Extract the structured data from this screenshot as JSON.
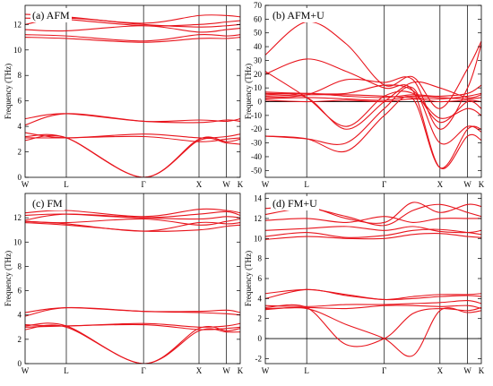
{
  "colors": {
    "band": "#e8141c",
    "axis": "#000000"
  },
  "chart_data": [
    {
      "type": "line",
      "panel_label": "(a) AFM",
      "ylabel": "Frequency (THz)",
      "ylim": [
        0,
        13.5
      ],
      "yticks": [
        0,
        2,
        4,
        6,
        8,
        10,
        12
      ],
      "x_ticks": [
        "W",
        "L",
        "Γ",
        "X",
        "W",
        "K"
      ],
      "x_tick_positions": [
        0,
        0.87,
        2.5,
        3.67,
        4.25,
        4.54
      ],
      "zero_line": false,
      "series": [
        {
          "x": [
            0,
            0.87,
            2.5,
            3.67,
            4.25,
            4.54
          ],
          "values": [
            12.8,
            12.6,
            12.1,
            12.7,
            12.7,
            12.6
          ]
        },
        {
          "x": [
            0,
            0.87,
            2.5,
            3.67,
            4.25,
            4.54
          ],
          "values": [
            12.5,
            12.4,
            11.9,
            12.0,
            12.2,
            12.3
          ]
        },
        {
          "x": [
            0,
            0.87,
            2.5,
            3.67,
            4.25,
            4.54
          ],
          "values": [
            12.0,
            12.5,
            12.0,
            11.8,
            11.9,
            12.0
          ]
        },
        {
          "x": [
            0,
            0.87,
            2.5,
            3.67,
            4.25,
            4.54
          ],
          "values": [
            11.6,
            11.5,
            11.9,
            11.4,
            11.6,
            11.7
          ]
        },
        {
          "x": [
            0,
            0.87,
            2.5,
            3.67,
            4.25,
            4.54
          ],
          "values": [
            11.2,
            11.1,
            10.7,
            11.2,
            11.1,
            11.2
          ]
        },
        {
          "x": [
            0,
            0.87,
            2.5,
            3.67,
            4.25,
            4.54
          ],
          "values": [
            11.0,
            10.9,
            10.6,
            10.9,
            10.9,
            11.0
          ]
        },
        {
          "x": [
            0,
            0.87,
            2.5,
            3.67,
            4.25,
            4.54
          ],
          "values": [
            4.6,
            5.0,
            4.4,
            4.5,
            4.4,
            4.6
          ]
        },
        {
          "x": [
            0,
            0.87,
            2.5,
            3.67,
            4.25,
            4.54
          ],
          "values": [
            4.1,
            5.0,
            4.4,
            4.3,
            4.5,
            4.4
          ]
        },
        {
          "x": [
            0,
            0.87,
            2.5,
            3.67,
            4.25,
            4.54
          ],
          "values": [
            3.5,
            3.1,
            3.4,
            3.1,
            3.2,
            3.4
          ]
        },
        {
          "x": [
            0,
            0.87,
            2.5,
            3.67,
            4.25,
            4.54
          ],
          "values": [
            3.1,
            3.1,
            3.2,
            2.8,
            3.0,
            3.1
          ]
        },
        {
          "x": [
            0,
            0.87,
            2.5,
            3.67,
            4.25,
            4.54
          ],
          "values": [
            3.2,
            3.1,
            0.0,
            3.0,
            2.8,
            3.0
          ]
        },
        {
          "x": [
            0,
            0.87,
            2.5,
            3.67,
            4.25,
            4.54
          ],
          "values": [
            2.9,
            3.1,
            0.0,
            2.9,
            2.7,
            2.6
          ]
        }
      ]
    },
    {
      "type": "line",
      "panel_label": "(b) AFM+U",
      "ylabel": "Frequency (THz)",
      "ylim": [
        -55,
        70
      ],
      "yticks": [
        -50,
        -40,
        -30,
        -20,
        -10,
        0,
        10,
        20,
        30,
        40,
        50,
        60,
        70
      ],
      "x_ticks": [
        "W",
        "L",
        "Γ",
        "X",
        "W",
        "K"
      ],
      "x_tick_positions": [
        0,
        0.87,
        2.5,
        3.67,
        4.25,
        4.54
      ],
      "zero_line": true,
      "series": [
        {
          "x": [
            0,
            0.87,
            1.7,
            2.5,
            3.1,
            3.67,
            4.25,
            4.54
          ],
          "values": [
            34,
            58,
            42,
            12,
            18,
            -5,
            24,
            44
          ]
        },
        {
          "x": [
            0,
            0.87,
            1.7,
            2.5,
            3.1,
            3.67,
            4.25,
            4.54
          ],
          "values": [
            20,
            31,
            22,
            10,
            8,
            -48,
            -25,
            -28
          ]
        },
        {
          "x": [
            0,
            0.87,
            1.7,
            2.5,
            3.1,
            3.67,
            4.25,
            4.54
          ],
          "values": [
            -25,
            -27,
            -36,
            -10,
            2,
            -48,
            -20,
            -20
          ]
        },
        {
          "x": [
            0,
            0.87,
            1.7,
            2.5,
            3.1,
            3.67,
            4.25,
            4.54
          ],
          "values": [
            -25,
            -27,
            -30,
            -5,
            10,
            -30,
            -18,
            -22
          ]
        },
        {
          "x": [
            0,
            0.87,
            1.7,
            2.5,
            3.1,
            3.67,
            4.25,
            4.54
          ],
          "values": [
            22,
            3,
            -18,
            4,
            6,
            -12,
            -5,
            -10
          ]
        },
        {
          "x": [
            0,
            0.87,
            1.7,
            2.5,
            3.1,
            3.67,
            4.25,
            4.54
          ],
          "values": [
            6,
            3,
            -20,
            0,
            14,
            10,
            3,
            5
          ]
        },
        {
          "x": [
            0,
            0.87,
            1.7,
            2.5,
            3.1,
            3.67,
            4.25,
            4.54
          ],
          "values": [
            5,
            6,
            4,
            3,
            5,
            4,
            6,
            12
          ]
        },
        {
          "x": [
            0,
            0.87,
            1.7,
            2.5,
            3.1,
            3.67,
            4.25,
            4.54
          ],
          "values": [
            4,
            5,
            5,
            4,
            3,
            2,
            4,
            6
          ]
        },
        {
          "x": [
            0,
            0.87,
            1.7,
            2.5,
            3.1,
            3.67,
            4.25,
            4.54
          ],
          "values": [
            2,
            3,
            2,
            1,
            4,
            3,
            2,
            3
          ]
        },
        {
          "x": [
            0,
            0.87,
            1.7,
            2.5,
            3.1,
            3.67,
            4.25,
            4.54
          ],
          "values": [
            1,
            0,
            1,
            0,
            2,
            0,
            1,
            0
          ]
        },
        {
          "x": [
            0,
            0.87,
            1.7,
            2.5,
            3.1,
            3.67,
            4.25,
            4.54
          ],
          "values": [
            3,
            5,
            16,
            14,
            16,
            -20,
            10,
            42
          ]
        },
        {
          "x": [
            0,
            0.87,
            1.7,
            2.5,
            3.1,
            3.67,
            4.25,
            4.54
          ],
          "values": [
            7,
            6,
            6,
            12,
            8,
            -15,
            0,
            -5
          ]
        }
      ]
    },
    {
      "type": "line",
      "panel_label": "(c) FM",
      "ylabel": "Frequency (THz)",
      "ylim": [
        0,
        14
      ],
      "yticks": [
        0,
        2,
        4,
        6,
        8,
        10,
        12
      ],
      "x_ticks": [
        "W",
        "L",
        "Γ",
        "X",
        "W",
        "K"
      ],
      "x_tick_positions": [
        0,
        0.87,
        2.5,
        3.67,
        4.25,
        4.54
      ],
      "zero_line": false,
      "series": [
        {
          "x": [
            0,
            0.87,
            2.5,
            3.67,
            4.25,
            4.54
          ],
          "values": [
            12.4,
            12.6,
            12.1,
            12.7,
            12.6,
            12.4
          ]
        },
        {
          "x": [
            0,
            0.87,
            2.5,
            3.67,
            4.25,
            4.54
          ],
          "values": [
            12.2,
            12.3,
            12.0,
            12.3,
            12.5,
            12.2
          ]
        },
        {
          "x": [
            0,
            0.87,
            2.5,
            3.67,
            4.25,
            4.54
          ],
          "values": [
            11.8,
            12.3,
            12.0,
            11.9,
            12.1,
            12.0
          ]
        },
        {
          "x": [
            0,
            0.87,
            2.5,
            3.67,
            4.25,
            4.54
          ],
          "values": [
            11.7,
            11.6,
            11.9,
            11.4,
            11.7,
            11.9
          ]
        },
        {
          "x": [
            0,
            0.87,
            2.5,
            3.67,
            4.25,
            4.54
          ],
          "values": [
            11.7,
            11.5,
            10.9,
            11.6,
            11.5,
            11.6
          ]
        },
        {
          "x": [
            0,
            0.87,
            2.5,
            3.67,
            4.25,
            4.54
          ],
          "values": [
            11.6,
            11.4,
            10.9,
            11.0,
            11.3,
            11.4
          ]
        },
        {
          "x": [
            0,
            0.87,
            2.5,
            3.67,
            4.25,
            4.54
          ],
          "values": [
            4.2,
            4.6,
            4.3,
            4.3,
            4.4,
            4.2
          ]
        },
        {
          "x": [
            0,
            0.87,
            2.5,
            3.67,
            4.25,
            4.54
          ],
          "values": [
            3.9,
            4.6,
            4.3,
            4.2,
            4.1,
            4.0
          ]
        },
        {
          "x": [
            0,
            0.87,
            2.5,
            3.67,
            4.25,
            4.54
          ],
          "values": [
            3.2,
            3.1,
            3.3,
            3.0,
            3.1,
            3.3
          ]
        },
        {
          "x": [
            0,
            0.87,
            2.5,
            3.67,
            4.25,
            4.54
          ],
          "values": [
            3.0,
            3.1,
            3.2,
            2.8,
            2.9,
            3.0
          ]
        },
        {
          "x": [
            0,
            0.87,
            2.5,
            3.67,
            4.25,
            4.54
          ],
          "values": [
            3.1,
            3.1,
            0.0,
            2.9,
            2.7,
            2.9
          ]
        },
        {
          "x": [
            0,
            0.87,
            2.5,
            3.67,
            4.25,
            4.54
          ],
          "values": [
            2.8,
            3.0,
            0.0,
            2.7,
            2.6,
            2.6
          ]
        }
      ]
    },
    {
      "type": "line",
      "panel_label": "(d) FM+U",
      "ylabel": "Frequency (THz)",
      "ylim": [
        -2.5,
        14.5
      ],
      "yticks": [
        -2,
        0,
        2,
        4,
        6,
        8,
        10,
        12,
        14
      ],
      "x_ticks": [
        "W",
        "L",
        "Γ",
        "X",
        "W",
        "K"
      ],
      "x_tick_positions": [
        0,
        0.87,
        2.5,
        3.67,
        4.25,
        4.54
      ],
      "zero_line": true,
      "series": [
        {
          "x": [
            0,
            0.87,
            1.7,
            2.5,
            3.1,
            3.67,
            4.25,
            4.54
          ],
          "values": [
            13.0,
            13.2,
            12.0,
            11.6,
            13.6,
            12.6,
            13.4,
            13.2
          ]
        },
        {
          "x": [
            0,
            0.87,
            1.7,
            2.5,
            3.1,
            3.67,
            4.25,
            4.54
          ],
          "values": [
            12.4,
            13.0,
            12.2,
            11.3,
            12.8,
            13.4,
            12.6,
            12.2
          ]
        },
        {
          "x": [
            0,
            0.87,
            1.7,
            2.5,
            3.1,
            3.67,
            4.25,
            4.54
          ],
          "values": [
            11.8,
            12.0,
            11.6,
            12.2,
            11.6,
            12.0,
            12.0,
            12.0
          ]
        },
        {
          "x": [
            0,
            0.87,
            1.7,
            2.5,
            3.1,
            3.67,
            4.25,
            4.54
          ],
          "values": [
            10.8,
            11.0,
            11.2,
            10.8,
            11.2,
            10.7,
            10.6,
            10.8
          ]
        },
        {
          "x": [
            0,
            0.87,
            1.7,
            2.5,
            3.1,
            3.67,
            4.25,
            4.54
          ],
          "values": [
            10.2,
            10.6,
            10.1,
            10.3,
            10.8,
            10.9,
            10.6,
            10.4
          ]
        },
        {
          "x": [
            0,
            0.87,
            1.7,
            2.5,
            3.1,
            3.67,
            4.25,
            4.54
          ],
          "values": [
            9.9,
            10.2,
            10.0,
            10.0,
            10.4,
            10.5,
            10.2,
            10.1
          ]
        },
        {
          "x": [
            0,
            0.87,
            1.7,
            2.5,
            3.1,
            3.67,
            4.25,
            4.54
          ],
          "values": [
            4.5,
            4.9,
            4.4,
            3.9,
            4.2,
            4.4,
            4.4,
            4.5
          ]
        },
        {
          "x": [
            0,
            0.87,
            1.7,
            2.5,
            3.1,
            3.67,
            4.25,
            4.54
          ],
          "values": [
            4.0,
            4.9,
            4.3,
            3.9,
            4.0,
            4.2,
            4.3,
            4.2
          ]
        },
        {
          "x": [
            0,
            0.87,
            1.7,
            2.5,
            3.1,
            3.67,
            4.25,
            4.54
          ],
          "values": [
            3.3,
            3.2,
            3.4,
            3.4,
            3.5,
            3.6,
            3.8,
            3.5
          ]
        },
        {
          "x": [
            0,
            0.87,
            1.7,
            2.5,
            3.1,
            3.67,
            4.25,
            4.54
          ],
          "values": [
            3.0,
            3.1,
            3.0,
            3.3,
            3.3,
            3.2,
            3.3,
            3.0
          ]
        },
        {
          "x": [
            0,
            0.87,
            1.7,
            2.5,
            3.1,
            3.67,
            4.25,
            4.54
          ],
          "values": [
            3.1,
            3.1,
            -0.6,
            0.0,
            2.5,
            3.0,
            2.8,
            3.1
          ]
        },
        {
          "x": [
            0,
            0.87,
            1.7,
            2.5,
            3.1,
            3.67,
            4.25,
            4.54
          ],
          "values": [
            2.9,
            3.0,
            1.4,
            0.0,
            -1.7,
            2.8,
            2.6,
            2.8
          ]
        }
      ]
    }
  ]
}
